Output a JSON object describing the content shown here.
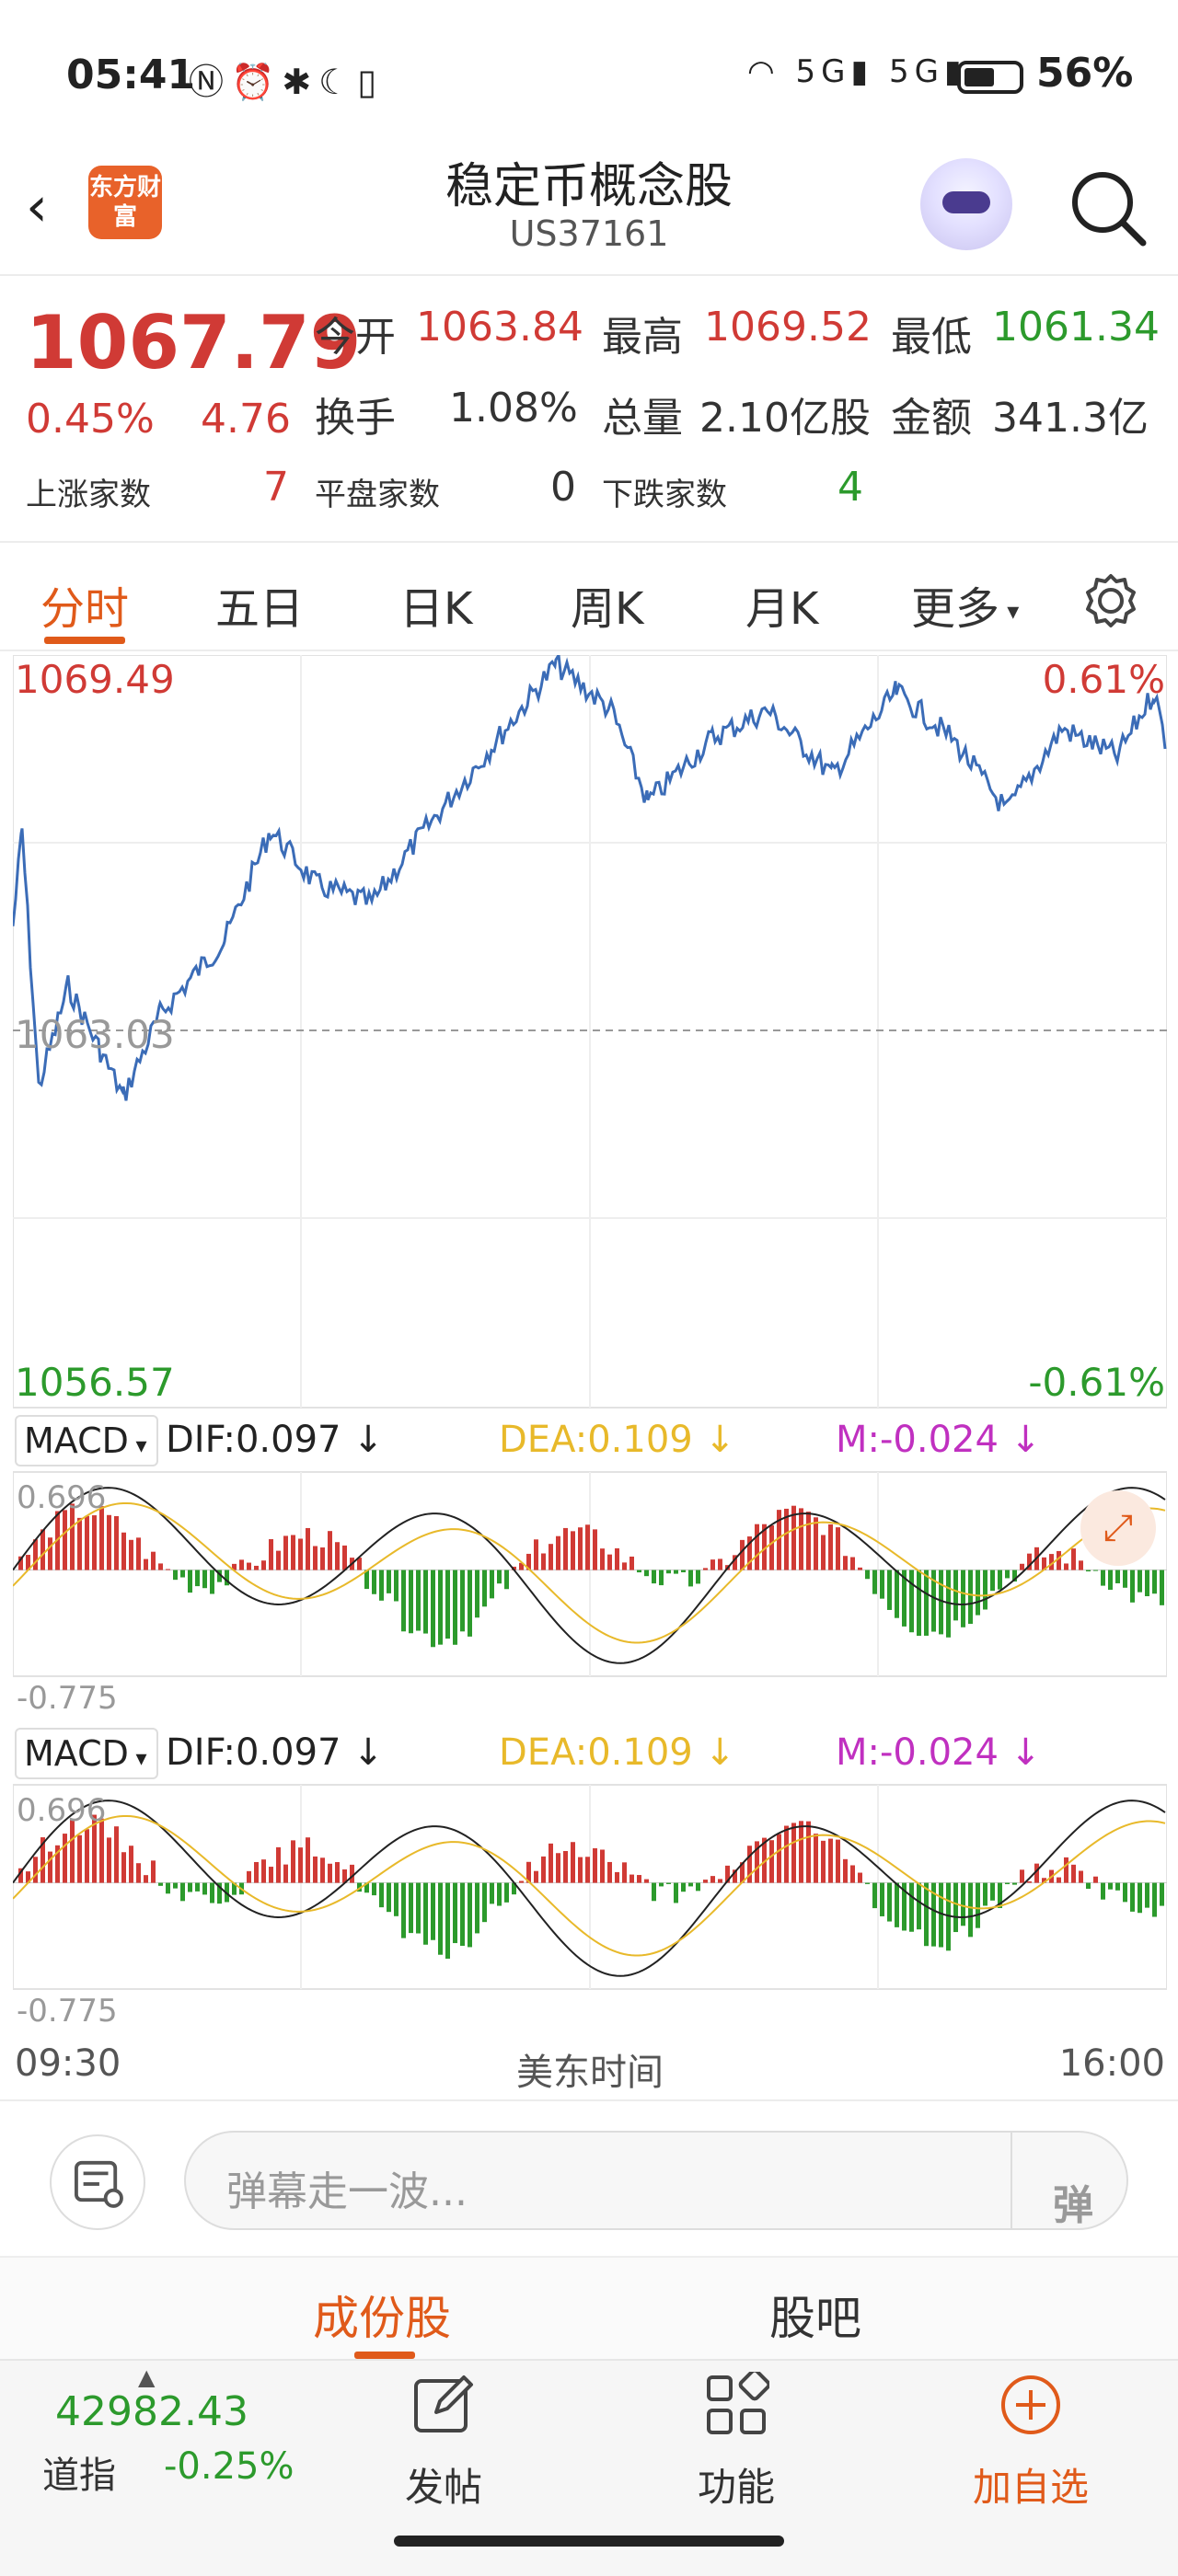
{
  "status_bar": {
    "time": "05:41",
    "battery": "56%"
  },
  "header": {
    "title": "稳定币概念股",
    "code": "US37161",
    "logo_text": "东方财富"
  },
  "quote": {
    "price": "1067.79",
    "change_pct": "0.45%",
    "change": "4.76",
    "open_label": "今开",
    "open": "1063.84",
    "high_label": "最高",
    "high": "1069.52",
    "low_label": "最低",
    "low": "1061.34",
    "turnover_label": "换手",
    "turnover": "1.08%",
    "volume_label": "总量",
    "volume": "2.10亿股",
    "amount_label": "金额",
    "amount": "341.3亿",
    "up_label": "上涨家数",
    "up": "7",
    "flat_label": "平盘家数",
    "flat": "0",
    "down_label": "下跌家数",
    "down": "4"
  },
  "tabs": [
    "分时",
    "五日",
    "日K",
    "周K",
    "月K",
    "更多"
  ],
  "chart": {
    "top_left": "1069.49",
    "top_right": "0.61%",
    "mid": "1063.03",
    "bottom_left": "1056.57",
    "bottom_right": "-0.61%",
    "time_start": "09:30",
    "time_mid": "美东时间",
    "time_end": "16:00"
  },
  "macd": {
    "select": "MACD",
    "dif": "DIF:0.097 ↓",
    "dea": "DEA:0.109 ↓",
    "m": "M:-0.024 ↓",
    "top": "0.696",
    "bottom": "-0.775"
  },
  "danmu": {
    "placeholder": "弹幕走一波...",
    "button": "弹"
  },
  "sub_tabs": [
    "成份股",
    "股吧"
  ],
  "nav": {
    "index_value": "42982.43",
    "index_name": "道指",
    "index_change": "-0.25%",
    "post": "发帖",
    "functions": "功能",
    "add": "加自选"
  },
  "colors": {
    "up": "#d03a35",
    "down": "#2c9a2c",
    "accent": "#e05a1a",
    "line": "#3b6cb7",
    "dea": "#e8b92a",
    "m": "#c030c0"
  }
}
